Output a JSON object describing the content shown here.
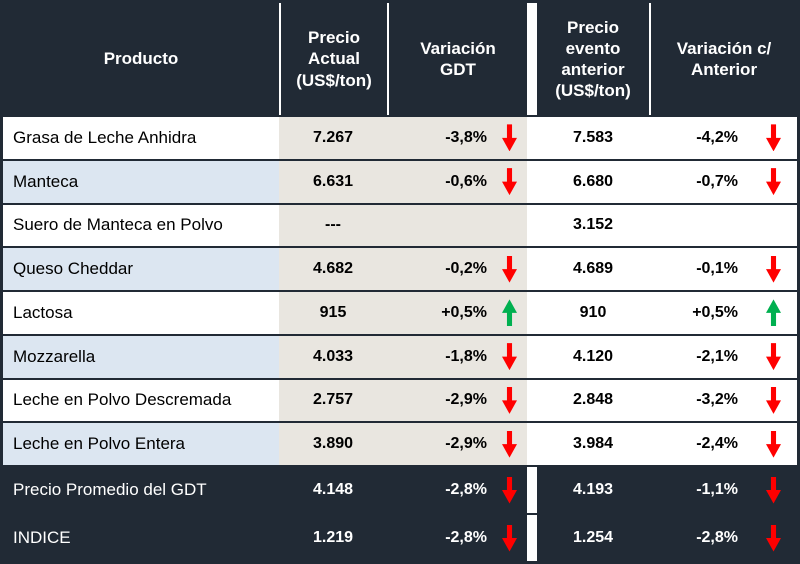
{
  "header": {
    "product": "Producto",
    "price_current": "Precio Actual (US$/ton)",
    "var_gdt": "Variación GDT",
    "price_prev": "Precio evento anterior (US$/ton)",
    "var_prev": "Variación c/ Anterior"
  },
  "colors": {
    "dark_navy": "#212A35",
    "light_blue_row": "#DCE6F1",
    "beige_column": "#E9E6E0",
    "white": "#FFFFFF",
    "arrow_down_red": "#FF0000",
    "arrow_up_green": "#00B050"
  },
  "rows": [
    {
      "product": "Grasa de Leche Anhidra",
      "price": "7.267",
      "var": "-3,8%",
      "var_dir": "down",
      "prev_price": "7.583",
      "var_prev": "-4,2%",
      "var_prev_dir": "down",
      "shade": "white"
    },
    {
      "product": "Manteca",
      "price": "6.631",
      "var": "-0,6%",
      "var_dir": "down",
      "prev_price": "6.680",
      "var_prev": "-0,7%",
      "var_prev_dir": "down",
      "shade": "blue"
    },
    {
      "product": "Suero de Manteca en Polvo",
      "price": "---",
      "var": "",
      "var_dir": "none",
      "prev_price": "3.152",
      "var_prev": "",
      "var_prev_dir": "none",
      "shade": "white"
    },
    {
      "product": "Queso Cheddar",
      "price": "4.682",
      "var": "-0,2%",
      "var_dir": "down",
      "prev_price": "4.689",
      "var_prev": "-0,1%",
      "var_prev_dir": "down",
      "shade": "blue"
    },
    {
      "product": "Lactosa",
      "price": "915",
      "var": "+0,5%",
      "var_dir": "up",
      "prev_price": "910",
      "var_prev": "+0,5%",
      "var_prev_dir": "up",
      "shade": "white"
    },
    {
      "product": "Mozzarella",
      "price": "4.033",
      "var": "-1,8%",
      "var_dir": "down",
      "prev_price": "4.120",
      "var_prev": "-2,1%",
      "var_prev_dir": "down",
      "shade": "blue"
    },
    {
      "product": "Leche en Polvo Descremada",
      "price": "2.757",
      "var": "-2,9%",
      "var_dir": "down",
      "prev_price": "2.848",
      "var_prev": "-3,2%",
      "var_prev_dir": "down",
      "shade": "white"
    },
    {
      "product": "Leche en Polvo Entera",
      "price": "3.890",
      "var": "-2,9%",
      "var_dir": "down",
      "prev_price": "3.984",
      "var_prev": "-2,4%",
      "var_prev_dir": "down",
      "shade": "blue"
    }
  ],
  "footer_rows": [
    {
      "product": "Precio Promedio del GDT",
      "price": "4.148",
      "var": "-2,8%",
      "var_dir": "down",
      "prev_price": "4.193",
      "var_prev": "-1,1%",
      "var_prev_dir": "down"
    },
    {
      "product": "INDICE",
      "price": "1.219",
      "var": "-2,8%",
      "var_dir": "down",
      "prev_price": "1.254",
      "var_prev": "-2,8%",
      "var_prev_dir": "down"
    }
  ],
  "chart_data": {
    "type": "table",
    "title": "Precios GDT por producto",
    "columns": [
      "Producto",
      "Precio Actual (US$/ton)",
      "Variación GDT",
      "Precio evento anterior (US$/ton)",
      "Variación c/ Anterior"
    ],
    "rows": [
      [
        "Grasa de Leche Anhidra",
        "7.267",
        "-3,8%",
        "7.583",
        "-4,2%"
      ],
      [
        "Manteca",
        "6.631",
        "-0,6%",
        "6.680",
        "-0,7%"
      ],
      [
        "Suero de Manteca en Polvo",
        "---",
        "",
        "3.152",
        ""
      ],
      [
        "Queso Cheddar",
        "4.682",
        "-0,2%",
        "4.689",
        "-0,1%"
      ],
      [
        "Lactosa",
        "915",
        "+0,5%",
        "910",
        "+0,5%"
      ],
      [
        "Mozzarella",
        "4.033",
        "-1,8%",
        "4.120",
        "-2,1%"
      ],
      [
        "Leche en Polvo Descremada",
        "2.757",
        "-2,9%",
        "2.848",
        "-3,2%"
      ],
      [
        "Leche en Polvo Entera",
        "3.890",
        "-2,9%",
        "3.984",
        "-2,4%"
      ],
      [
        "Precio Promedio del GDT",
        "4.148",
        "-2,8%",
        "4.193",
        "-1,1%"
      ],
      [
        "INDICE",
        "1.219",
        "-2,8%",
        "1.254",
        "-2,8%"
      ]
    ]
  }
}
